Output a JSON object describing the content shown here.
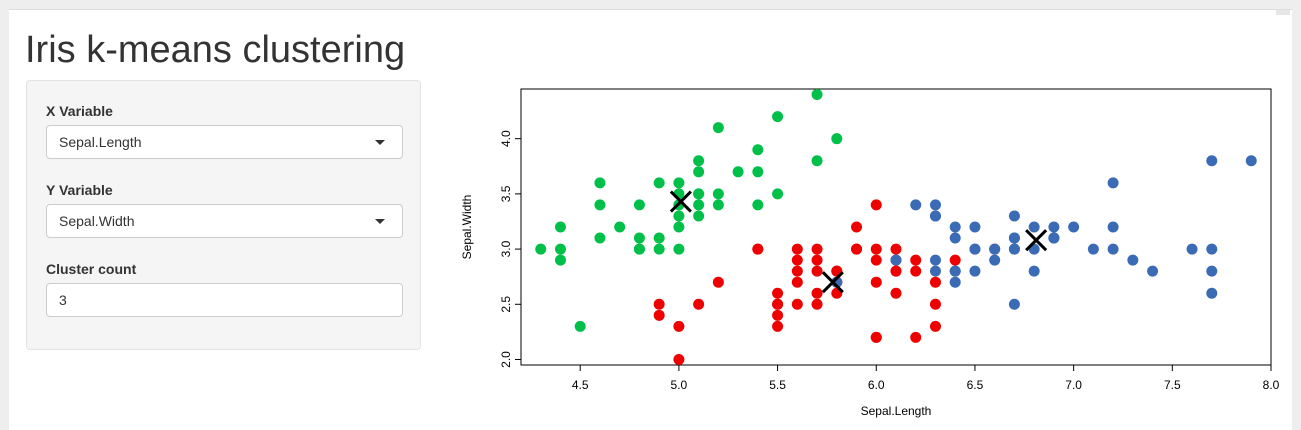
{
  "app": {
    "title": "Iris k-means clustering"
  },
  "sidebar": {
    "x_variable": {
      "label": "X Variable",
      "selected": "Sepal.Length"
    },
    "y_variable": {
      "label": "Y Variable",
      "selected": "Sepal.Width"
    },
    "cluster_count": {
      "label": "Cluster count",
      "value": "3"
    },
    "caret_icon": "chevron-down-icon"
  },
  "chart_data": {
    "type": "scatter",
    "title": "",
    "xlabel": "Sepal.Length",
    "ylabel": "Sepal.Width",
    "xlim": [
      4.2,
      8.0
    ],
    "ylim": [
      1.95,
      4.45
    ],
    "xticks": [
      "4.5",
      "5.0",
      "5.5",
      "6.0",
      "6.5",
      "7.0",
      "7.5",
      "8.0"
    ],
    "yticks": [
      "2.0",
      "2.5",
      "3.0",
      "3.5",
      "4.0"
    ],
    "grid": false,
    "legend": "none",
    "point_size_note": "",
    "series": [
      {
        "color": "#00c04a",
        "points": [
          [
            5.1,
            3.5
          ],
          [
            4.9,
            3.0
          ],
          [
            4.7,
            3.2
          ],
          [
            4.6,
            3.1
          ],
          [
            5.0,
            3.6
          ],
          [
            5.4,
            3.9
          ],
          [
            4.6,
            3.4
          ],
          [
            5.0,
            3.4
          ],
          [
            4.4,
            2.9
          ],
          [
            4.9,
            3.1
          ],
          [
            5.4,
            3.7
          ],
          [
            4.8,
            3.4
          ],
          [
            4.8,
            3.0
          ],
          [
            4.3,
            3.0
          ],
          [
            5.8,
            4.0
          ],
          [
            5.7,
            4.4
          ],
          [
            5.1,
            3.8
          ],
          [
            5.7,
            3.8
          ],
          [
            5.1,
            3.7
          ],
          [
            4.6,
            3.6
          ],
          [
            5.0,
            3.0
          ],
          [
            5.0,
            3.2
          ],
          [
            5.2,
            3.5
          ],
          [
            5.2,
            3.4
          ],
          [
            4.8,
            3.1
          ],
          [
            5.2,
            4.1
          ],
          [
            5.5,
            4.2
          ],
          [
            4.4,
            3.0
          ],
          [
            5.1,
            3.4
          ],
          [
            5.0,
            3.5
          ],
          [
            4.5,
            2.3
          ],
          [
            4.4,
            3.2
          ],
          [
            4.8,
            3.0
          ],
          [
            5.3,
            3.7
          ],
          [
            5.0,
            3.3
          ],
          [
            5.1,
            3.3
          ],
          [
            5.4,
            3.4
          ],
          [
            5.5,
            3.5
          ],
          [
            4.9,
            3.6
          ],
          [
            5.1,
            3.5
          ]
        ]
      },
      {
        "color": "#ee0000",
        "points": [
          [
            5.5,
            2.3
          ],
          [
            5.7,
            2.8
          ],
          [
            4.9,
            2.4
          ],
          [
            5.2,
            2.7
          ],
          [
            5.0,
            2.0
          ],
          [
            5.9,
            3.0
          ],
          [
            6.0,
            2.2
          ],
          [
            5.6,
            2.9
          ],
          [
            5.8,
            2.7
          ],
          [
            6.2,
            2.2
          ],
          [
            5.6,
            2.5
          ],
          [
            5.9,
            3.2
          ],
          [
            6.1,
            2.8
          ],
          [
            6.4,
            2.9
          ],
          [
            6.6,
            3.0
          ],
          [
            5.5,
            2.4
          ],
          [
            5.5,
            2.6
          ],
          [
            6.1,
            3.0
          ],
          [
            5.8,
            2.6
          ],
          [
            5.0,
            2.3
          ],
          [
            5.6,
            2.7
          ],
          [
            5.7,
            3.0
          ],
          [
            5.7,
            2.9
          ],
          [
            6.2,
            2.9
          ],
          [
            5.1,
            2.5
          ],
          [
            5.7,
            2.6
          ],
          [
            5.4,
            3.0
          ],
          [
            6.0,
            3.4
          ],
          [
            6.3,
            2.3
          ],
          [
            5.6,
            3.0
          ],
          [
            6.1,
            2.6
          ],
          [
            5.8,
            2.7
          ],
          [
            6.0,
            2.7
          ],
          [
            5.5,
            2.5
          ],
          [
            5.4,
            3.0
          ],
          [
            6.3,
            2.5
          ],
          [
            5.8,
            2.8
          ],
          [
            6.0,
            2.9
          ],
          [
            5.9,
            3.0
          ],
          [
            4.9,
            2.5
          ],
          [
            6.1,
            2.8
          ],
          [
            6.2,
            2.8
          ],
          [
            6.0,
            3.0
          ],
          [
            5.7,
            2.5
          ],
          [
            6.3,
            2.7
          ],
          [
            5.6,
            2.8
          ],
          [
            6.1,
            2.9
          ],
          [
            5.8,
            2.8
          ],
          [
            5.5,
            2.5
          ],
          [
            6.0,
            2.2
          ]
        ]
      },
      {
        "color": "#3b6bb5",
        "points": [
          [
            7.0,
            3.2
          ],
          [
            6.9,
            3.1
          ],
          [
            6.5,
            2.8
          ],
          [
            6.7,
            3.1
          ],
          [
            6.3,
            3.3
          ],
          [
            6.6,
            2.9
          ],
          [
            6.8,
            2.8
          ],
          [
            6.7,
            3.0
          ],
          [
            6.2,
            3.4
          ],
          [
            7.2,
            3.6
          ],
          [
            6.5,
            3.2
          ],
          [
            6.4,
            2.7
          ],
          [
            6.8,
            3.0
          ],
          [
            6.4,
            3.2
          ],
          [
            6.5,
            3.0
          ],
          [
            7.7,
            3.8
          ],
          [
            7.7,
            2.6
          ],
          [
            6.9,
            3.2
          ],
          [
            7.7,
            2.8
          ],
          [
            6.7,
            3.3
          ],
          [
            7.2,
            3.2
          ],
          [
            7.4,
            2.8
          ],
          [
            7.9,
            3.8
          ],
          [
            6.4,
            2.8
          ],
          [
            7.7,
            3.0
          ],
          [
            6.3,
            3.4
          ],
          [
            6.4,
            3.1
          ],
          [
            6.9,
            3.1
          ],
          [
            6.7,
            3.1
          ],
          [
            5.8,
            2.7
          ],
          [
            6.8,
            3.2
          ],
          [
            6.7,
            2.5
          ],
          [
            6.3,
            2.9
          ],
          [
            7.1,
            3.0
          ],
          [
            7.6,
            3.0
          ],
          [
            7.3,
            2.9
          ],
          [
            7.2,
            3.0
          ],
          [
            6.4,
            2.8
          ],
          [
            6.5,
            3.0
          ],
          [
            6.3,
            2.8
          ],
          [
            6.1,
            2.9
          ],
          [
            6.7,
            3.0
          ],
          [
            6.3,
            3.3
          ],
          [
            6.9,
            3.1
          ],
          [
            6.6,
            3.0
          ]
        ]
      }
    ],
    "centers": [
      [
        5.01,
        3.43
      ],
      [
        5.78,
        2.7
      ],
      [
        6.81,
        3.08
      ]
    ],
    "center_color": "#000000"
  }
}
